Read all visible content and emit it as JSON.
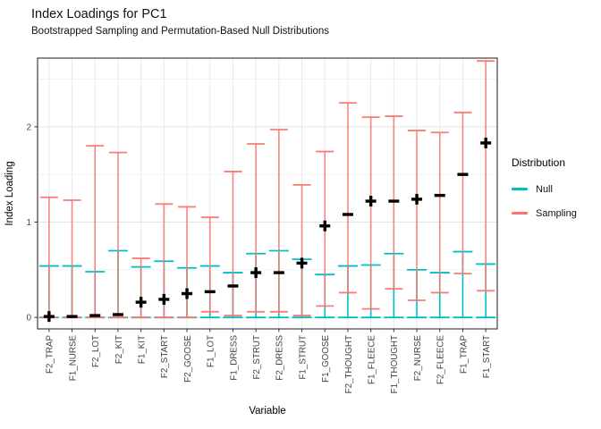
{
  "title": "Index Loadings for PC1",
  "subtitle": "Bootstrapped Sampling and Permutation-Based Null Distributions",
  "legend": {
    "title": "Distribution",
    "items": [
      {
        "label": "Null",
        "color": "#00BFC4"
      },
      {
        "label": "Sampling",
        "color": "#F8766D"
      }
    ]
  },
  "chart_data": {
    "type": "errorbar",
    "title": "Index Loadings for PC1",
    "subtitle": "Bootstrapped Sampling and Permutation-Based Null Distributions",
    "xlabel": "Variable",
    "ylabel": "Index Loading",
    "ylim": [
      -0.12,
      2.72
    ],
    "yticks": [
      0,
      1,
      2
    ],
    "yticks_minor": [
      0.5,
      1.5,
      2.5
    ],
    "grid": true,
    "legend_position": "right",
    "categories": [
      "F2_TRAP",
      "F1_NURSE",
      "F2_LOT",
      "F2_KIT",
      "F1_KIT",
      "F2_START",
      "F2_GOOSE",
      "F1_LOT",
      "F1_DRESS",
      "F2_STRUT",
      "F2_DRESS",
      "F1_STRUT",
      "F1_GOOSE",
      "F2_THOUGHT",
      "F1_FLEECE",
      "F1_THOUGHT",
      "F2_NURSE",
      "F2_FLEECE",
      "F1_TRAP",
      "F1_START"
    ],
    "series": [
      {
        "name": "Null",
        "color": "#00BFC4",
        "intervals": [
          [
            0,
            0.54
          ],
          [
            0,
            0.54
          ],
          [
            0,
            0.48
          ],
          [
            0,
            0.7
          ],
          [
            0,
            0.53
          ],
          [
            0,
            0.59
          ],
          [
            0,
            0.52
          ],
          [
            0,
            0.54
          ],
          [
            0,
            0.47
          ],
          [
            0,
            0.67
          ],
          [
            0,
            0.7
          ],
          [
            0,
            0.61
          ],
          [
            0,
            0.45
          ],
          [
            0,
            0.54
          ],
          [
            0,
            0.55
          ],
          [
            0,
            0.67
          ],
          [
            0,
            0.5
          ],
          [
            0,
            0.47
          ],
          [
            0,
            0.69
          ],
          [
            0,
            0.56
          ]
        ]
      },
      {
        "name": "Sampling",
        "color": "#F8766D",
        "intervals": [
          [
            0,
            1.26
          ],
          [
            0,
            1.23
          ],
          [
            0,
            1.8
          ],
          [
            0,
            1.73
          ],
          [
            0,
            0.62
          ],
          [
            0,
            1.19
          ],
          [
            0,
            1.16
          ],
          [
            0.06,
            1.05
          ],
          [
            0.02,
            1.53
          ],
          [
            0.06,
            1.82
          ],
          [
            0.06,
            1.97
          ],
          [
            0.02,
            1.39
          ],
          [
            0.12,
            1.74
          ],
          [
            0.26,
            2.25
          ],
          [
            0.09,
            2.1
          ],
          [
            0.3,
            2.11
          ],
          [
            0.18,
            1.96
          ],
          [
            0.26,
            1.94
          ],
          [
            0.46,
            2.15
          ],
          [
            0.28,
            2.69
          ]
        ]
      }
    ],
    "points": {
      "name": "Observed index loading",
      "color": "#000000",
      "values": [
        0.01,
        0.01,
        0.02,
        0.03,
        0.16,
        0.19,
        0.25,
        0.27,
        0.33,
        0.47,
        0.47,
        0.57,
        0.96,
        1.08,
        1.22,
        1.22,
        1.24,
        1.28,
        1.5,
        1.83
      ],
      "shapes": [
        "plus",
        "dash",
        "dash",
        "dash",
        "plus",
        "plus",
        "plus",
        "dash",
        "dash",
        "plus",
        "dash",
        "plus",
        "plus",
        "dash",
        "plus",
        "dash",
        "plus",
        "dash",
        "dash",
        "plus"
      ]
    }
  }
}
